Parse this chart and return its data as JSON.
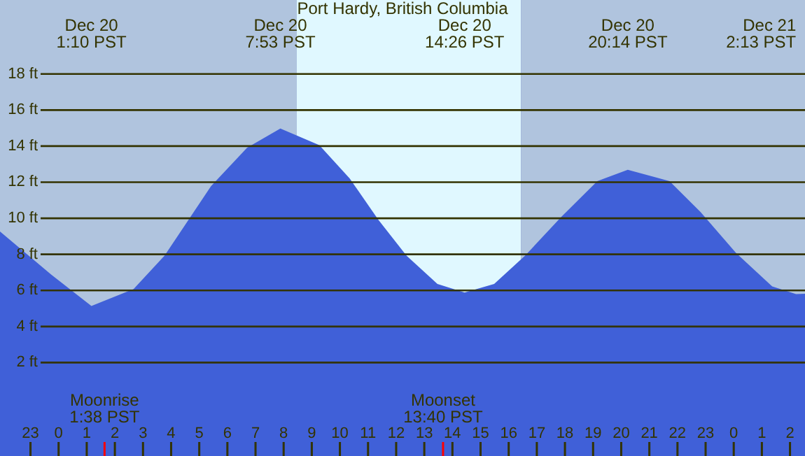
{
  "chart_data": {
    "type": "area",
    "title": "Port Hardy, British Columbia",
    "x": [
      "--12-19T21:55",
      "--12-19T23:44",
      "--12-20T01:10",
      "--12-20T02:40",
      "--12-20T03:46",
      "--12-20T05:25",
      "--12-20T06:42",
      "--12-20T07:53",
      "--12-20T09:16",
      "--12-20T10:21",
      "--12-20T11:22",
      "--12-20T12:22",
      "--12-20T13:28",
      "--12-20T14:26",
      "--12-20T15:29",
      "--12-20T16:35",
      "--12-20T17:52",
      "--12-20T19:09",
      "--12-20T20:14",
      "--12-20T21:43",
      "--12-20T22:49",
      "--12-21T00:05",
      "--12-21T01:22",
      "--12-21T02:13",
      "--12-21T02:32"
    ],
    "series": [
      {
        "color": "#4060d8",
        "values": [
          9.27,
          6.88,
          5.14,
          6.08,
          7.93,
          11.78,
          13.91,
          14.98,
          14.05,
          12.2,
          9.92,
          7.93,
          6.36,
          5.88,
          6.36,
          7.93,
          10.07,
          12.06,
          12.69,
          12.06,
          10.35,
          8.07,
          6.22,
          5.8,
          5.82
        ]
      }
    ],
    "xlim": [
      "--12-19T21:55",
      "--12-21T02:32"
    ],
    "xticks": [
      {
        "value": "--12-19T23:00",
        "label": "23"
      },
      {
        "value": "--12-20T00:00",
        "label": "0"
      },
      {
        "value": "--12-20T01:00",
        "label": "1"
      },
      {
        "value": "--12-20T02:00",
        "label": "2"
      },
      {
        "value": "--12-20T03:00",
        "label": "3"
      },
      {
        "value": "--12-20T04:00",
        "label": "4"
      },
      {
        "value": "--12-20T05:00",
        "label": "5"
      },
      {
        "value": "--12-20T06:00",
        "label": "6"
      },
      {
        "value": "--12-20T07:00",
        "label": "7"
      },
      {
        "value": "--12-20T08:00",
        "label": "8"
      },
      {
        "value": "--12-20T09:00",
        "label": "9"
      },
      {
        "value": "--12-20T10:00",
        "label": "10"
      },
      {
        "value": "--12-20T11:00",
        "label": "11"
      },
      {
        "value": "--12-20T12:00",
        "label": "12"
      },
      {
        "value": "--12-20T13:00",
        "label": "13"
      },
      {
        "value": "--12-20T14:00",
        "label": "14"
      },
      {
        "value": "--12-20T15:00",
        "label": "15"
      },
      {
        "value": "--12-20T16:00",
        "label": "16"
      },
      {
        "value": "--12-20T17:00",
        "label": "17"
      },
      {
        "value": "--12-20T18:00",
        "label": "18"
      },
      {
        "value": "--12-20T19:00",
        "label": "19"
      },
      {
        "value": "--12-20T20:00",
        "label": "20"
      },
      {
        "value": "--12-20T21:00",
        "label": "21"
      },
      {
        "value": "--12-20T22:00",
        "label": "22"
      },
      {
        "value": "--12-20T23:00",
        "label": "23"
      },
      {
        "value": "--12-21T00:00",
        "label": "0"
      },
      {
        "value": "--12-21T01:00",
        "label": "1"
      },
      {
        "value": "--12-21T02:00",
        "label": "2"
      }
    ],
    "ylim": [
      0,
      22.1
    ],
    "yticks": [
      {
        "value": 2,
        "label": "2 ft"
      },
      {
        "value": 4,
        "label": "4 ft"
      },
      {
        "value": 6,
        "label": "6 ft"
      },
      {
        "value": 8,
        "label": "8 ft"
      },
      {
        "value": 10,
        "label": "10 ft"
      },
      {
        "value": 12,
        "label": "12 ft"
      },
      {
        "value": 14,
        "label": "14 ft"
      },
      {
        "value": 16,
        "label": "16 ft"
      },
      {
        "value": 18,
        "label": "18 ft"
      }
    ],
    "grid": "y",
    "bands": [
      {
        "axis": "x",
        "from": "--12-19T21:55",
        "to": "--12-20T08:28",
        "color": "#b0c4de"
      },
      {
        "axis": "x",
        "from": "--12-20T08:28",
        "to": "--12-20T16:26",
        "color": "#e0f8ff"
      },
      {
        "axis": "x",
        "from": "--12-20T16:26",
        "to": "--12-21T02:32",
        "color": "#b0c4de"
      }
    ],
    "ref_lines": [
      {
        "axis": "x",
        "value": "--12-20T01:38",
        "label": "Moonrise\n1:38 PST",
        "color": "#ff0000"
      },
      {
        "axis": "x",
        "value": "--12-20T13:40",
        "label": "Moonset\n13:40 PST",
        "color": "#ff0000"
      }
    ],
    "annotations": [
      "Dec 20\n1:10 PST",
      "Dec 20\n7:53 PST",
      "Dec 20\n14:26 PST",
      "Dec 20\n20:14 PST",
      "Dec 21\n2:13 PST"
    ]
  }
}
